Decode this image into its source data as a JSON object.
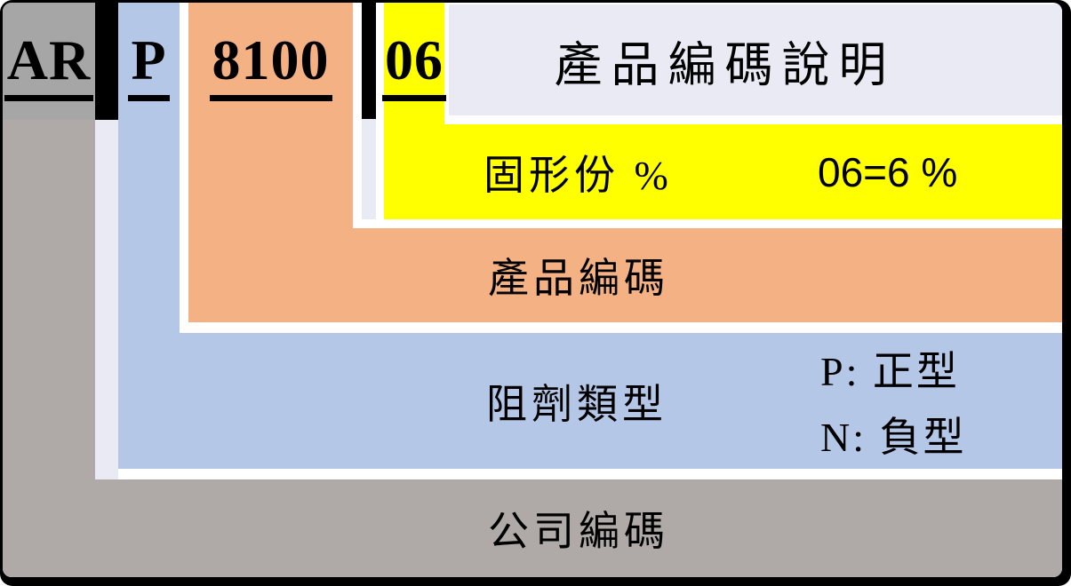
{
  "title": "產品編碼說明",
  "code": {
    "company_code": "AR",
    "resist_type_code": "P",
    "product_code": "8100",
    "solid_content_code": "06"
  },
  "legend": {
    "solid_content": {
      "label": "固形份 %",
      "example": "06=6 %"
    },
    "product": {
      "label": "產品編碼"
    },
    "resist_type": {
      "label": "阻劑類型",
      "option_positive": "P: 正型",
      "option_negative": "N: 負型"
    },
    "company": {
      "label": "公司編碼"
    }
  },
  "colors": {
    "company_gray": "#afaaa7",
    "company_cell_gray": "#a6a6a6",
    "resist_blue": "#b4c7e7",
    "product_orange": "#f4b183",
    "solid_yellow": "#ffff00",
    "panel_lavender": "#e9eaf3",
    "separator_black": "#000000",
    "frame_black": "#000000"
  }
}
